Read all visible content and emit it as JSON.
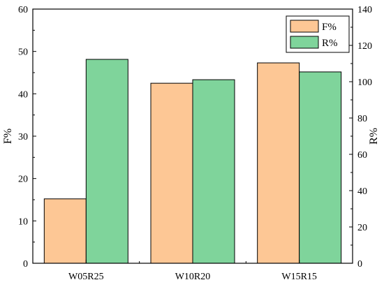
{
  "chart_data": {
    "type": "bar",
    "categories": [
      "W05R25",
      "W10R20",
      "W15R15"
    ],
    "series": [
      {
        "name": "F%",
        "axis": "left",
        "color": "#FDC795",
        "values": [
          15.2,
          42.5,
          47.3
        ]
      },
      {
        "name": "R%",
        "axis": "right",
        "color": "#7FD49B",
        "values": [
          112.3,
          101.1,
          105.4
        ]
      }
    ],
    "ylabel": "F%",
    "y2label": "R%",
    "ylim": [
      0,
      60
    ],
    "y2lim": [
      0,
      140
    ],
    "yticks": [
      0,
      10,
      20,
      30,
      40,
      50,
      60
    ],
    "y2ticks": [
      0,
      20,
      40,
      60,
      80,
      100,
      120,
      140
    ],
    "legend": "top-right",
    "grid": false
  }
}
